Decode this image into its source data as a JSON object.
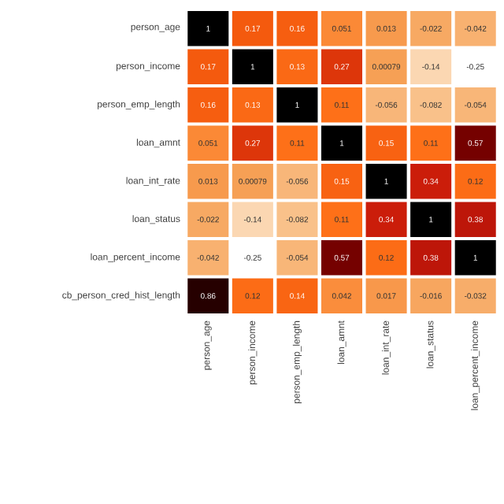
{
  "chart_data": {
    "type": "heatmap",
    "categories": [
      "person_age",
      "person_income",
      "person_emp_length",
      "loan_amnt",
      "loan_int_rate",
      "loan_status",
      "loan_percent_income"
    ],
    "y_categories": [
      "person_age",
      "person_income",
      "person_emp_length",
      "loan_amnt",
      "loan_int_rate",
      "loan_status",
      "loan_percent_income",
      "cb_person_cred_hist_length"
    ],
    "cells": [
      [
        1,
        0.17,
        0.16,
        0.051,
        0.013,
        -0.022,
        -0.042
      ],
      [
        0.17,
        1,
        0.13,
        0.27,
        0.00079,
        -0.14,
        -0.25
      ],
      [
        0.16,
        0.13,
        1,
        0.11,
        -0.056,
        -0.082,
        -0.054
      ],
      [
        0.051,
        0.27,
        0.11,
        1,
        0.15,
        0.11,
        0.57
      ],
      [
        0.013,
        0.00079,
        -0.056,
        0.15,
        1,
        0.34,
        0.12
      ],
      [
        -0.022,
        -0.14,
        -0.082,
        0.11,
        0.34,
        1,
        0.38
      ],
      [
        -0.042,
        -0.25,
        -0.054,
        0.57,
        0.12,
        0.38,
        1
      ],
      [
        0.86,
        0.12,
        0.14,
        0.042,
        0.017,
        -0.016,
        -0.032
      ]
    ],
    "data_labels": true
  }
}
